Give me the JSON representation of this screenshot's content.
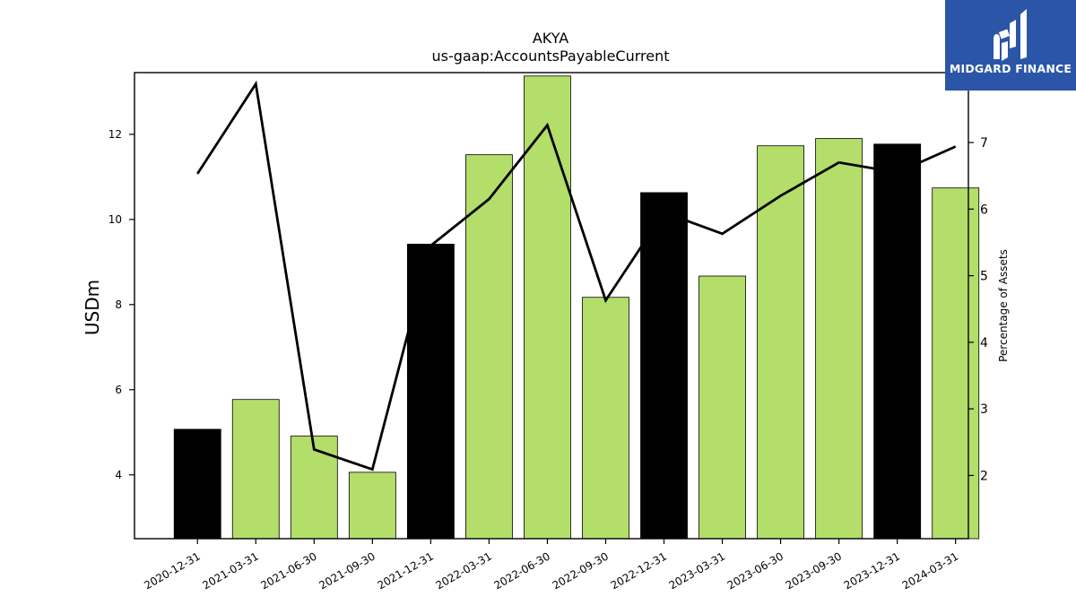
{
  "chart_data": {
    "type": "bar",
    "title": "AKYA",
    "subtitle": "us-gaap:AccountsPayableCurrent",
    "ylabel": "USDm",
    "y2label": "Percentage of Assets",
    "categories": [
      "2020-12-31",
      "2021-03-31",
      "2021-06-30",
      "2021-09-30",
      "2021-12-31",
      "2022-03-31",
      "2022-06-30",
      "2022-09-30",
      "2022-12-31",
      "2023-03-31",
      "2023-06-30",
      "2023-09-30",
      "2023-12-31",
      "2024-03-31"
    ],
    "series": [
      {
        "type": "bar",
        "axis": "left",
        "values": [
          5.07,
          5.77,
          4.91,
          4.06,
          9.42,
          11.52,
          13.37,
          8.17,
          10.63,
          8.67,
          11.73,
          11.9,
          11.77,
          10.74
        ],
        "colors": [
          "#000000",
          "#b3de69",
          "#b3de69",
          "#b3de69",
          "#000000",
          "#b3de69",
          "#b3de69",
          "#b3de69",
          "#000000",
          "#b3de69",
          "#b3de69",
          "#b3de69",
          "#000000",
          "#b3de69"
        ]
      },
      {
        "type": "line",
        "axis": "right",
        "values": [
          6.53,
          7.88,
          2.39,
          2.09,
          5.45,
          6.15,
          7.26,
          4.63,
          5.95,
          5.63,
          6.2,
          6.7,
          6.55,
          6.94
        ],
        "color": "#000000"
      }
    ],
    "ylim": [
      2.5,
      13.45
    ],
    "y2lim": [
      1.05,
      8.05
    ],
    "yticks": [
      "4",
      "6",
      "8",
      "10",
      "12"
    ],
    "y2ticks": [
      "2",
      "3",
      "4",
      "5",
      "6",
      "7"
    ],
    "grid": false,
    "legend": false
  },
  "logo": {
    "text": "MIDGARD FINANCE",
    "bg": "#2b56a7"
  }
}
